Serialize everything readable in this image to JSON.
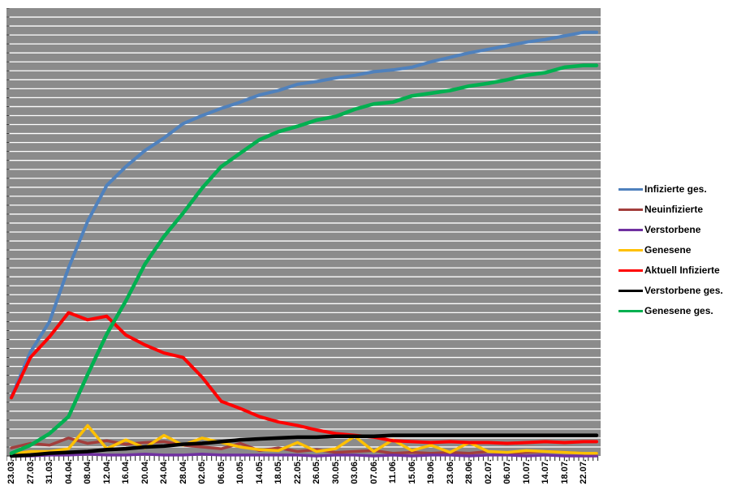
{
  "chart": {
    "plot_background": "#8B8B8B",
    "gridline_color": "#FFFFFF",
    "tick_color": "#404040",
    "legend": [
      {
        "label": "Infizierte ges.",
        "color": "#4F81BD"
      },
      {
        "label": "Neuinfizierte",
        "color": "#A33E3C"
      },
      {
        "label": "Verstorbene",
        "color": "#7030A0"
      },
      {
        "label": "Genesene",
        "color": "#FFC000"
      },
      {
        "label": "Aktuell Infizierte",
        "color": "#FF0000"
      },
      {
        "label": "Verstorbene ges.",
        "color": "#000000"
      },
      {
        "label": "Genesene ges.",
        "color": "#00B050"
      }
    ]
  },
  "chart_data": {
    "type": "line",
    "title": "",
    "xlabel": "",
    "ylabel": "",
    "grid": true,
    "legend_position": "right",
    "x_axis_note": "daily data, tick marks every day, labels every 4 days",
    "y_axis_note": "no numeric y-axis labels visible; values estimated in gridline units, 1 unit = 1 horizontal gridline, 50 gridlines total",
    "ylim": [
      0,
      50
    ],
    "categories": [
      "23.03.",
      "27.03.",
      "31.03.",
      "04.04.",
      "08.04.",
      "12.04.",
      "16.04.",
      "20.04.",
      "24.04.",
      "28.04.",
      "02.05.",
      "06.05.",
      "10.05.",
      "14.05.",
      "18.05.",
      "22.05.",
      "26.05.",
      "30.05.",
      "03.06.",
      "07.06.",
      "11.06.",
      "15.06.",
      "19.06.",
      "23.06.",
      "28.06.",
      "02.07.",
      "06.07.",
      "10.07.",
      "14.07.",
      "18.07.",
      "22.07."
    ],
    "series": [
      {
        "name": "Infizierte ges.",
        "color": "#4F81BD",
        "values": [
          6.6,
          11.6,
          15.0,
          21.0,
          26.2,
          30.2,
          32.3,
          34.1,
          35.5,
          37.1,
          38.0,
          38.8,
          39.5,
          40.3,
          40.8,
          41.5,
          41.8,
          42.2,
          42.5,
          42.9,
          43.1,
          43.4,
          44.0,
          44.5,
          45.0,
          45.4,
          45.8,
          46.2,
          46.5,
          46.9,
          47.3
        ]
      },
      {
        "name": "Neuinfizierte",
        "color": "#A33E3C",
        "values": [
          0.9,
          1.4,
          1.2,
          2.0,
          1.4,
          1.7,
          1.3,
          1.5,
          1.6,
          1.2,
          1.0,
          0.8,
          1.4,
          0.6,
          0.9,
          0.5,
          0.7,
          0.4,
          0.5,
          0.6,
          0.3,
          0.4,
          0.3,
          0.4,
          0.3,
          0.5,
          0.3,
          0.4,
          0.5,
          0.4,
          0.3
        ]
      },
      {
        "name": "Verstorbene",
        "color": "#7030A0",
        "values": [
          0.0,
          0.0,
          0.1,
          0.1,
          0.2,
          0.1,
          0.1,
          0.2,
          0.1,
          0.1,
          0.2,
          0.1,
          0.1,
          0.1,
          0.1,
          0.1,
          0.0,
          0.1,
          0.1,
          0.0,
          0.1,
          0.0,
          0.1,
          0.1,
          0.0,
          0.1,
          0.1,
          0.0,
          0.1,
          0.0,
          0.0
        ]
      },
      {
        "name": "Genesene",
        "color": "#FFC000",
        "values": [
          0.2,
          0.5,
          0.5,
          0.8,
          3.4,
          0.8,
          1.8,
          0.9,
          2.3,
          1.2,
          2.0,
          1.5,
          1.0,
          0.7,
          0.6,
          1.5,
          0.5,
          0.8,
          2.2,
          0.5,
          1.8,
          0.6,
          1.2,
          0.4,
          1.5,
          0.5,
          0.4,
          0.6,
          0.5,
          0.4,
          0.3
        ]
      },
      {
        "name": "Aktuell Infizierte",
        "color": "#FF0000",
        "values": [
          6.5,
          11.0,
          13.3,
          16.0,
          15.2,
          15.6,
          13.5,
          12.4,
          11.5,
          11.0,
          8.8,
          6.1,
          5.3,
          4.4,
          3.8,
          3.4,
          2.9,
          2.5,
          2.3,
          2.1,
          1.7,
          1.6,
          1.5,
          1.6,
          1.5,
          1.5,
          1.4,
          1.5,
          1.6,
          1.5,
          1.6
        ]
      },
      {
        "name": "Verstorbene ges.",
        "color": "#000000",
        "values": [
          0.0,
          0.1,
          0.3,
          0.4,
          0.5,
          0.7,
          0.8,
          1.0,
          1.1,
          1.3,
          1.4,
          1.6,
          1.8,
          1.9,
          2.0,
          2.1,
          2.1,
          2.2,
          2.2,
          2.2,
          2.3,
          2.3,
          2.3,
          2.3,
          2.3,
          2.3,
          2.3,
          2.3,
          2.3,
          2.3,
          2.3
        ]
      },
      {
        "name": "Genesene ges.",
        "color": "#00B050",
        "values": [
          0.3,
          1.2,
          2.5,
          4.4,
          9.1,
          13.6,
          17.3,
          21.4,
          24.5,
          27.1,
          29.9,
          32.3,
          33.8,
          35.3,
          36.2,
          36.8,
          37.5,
          37.9,
          38.7,
          39.3,
          39.5,
          40.2,
          40.5,
          40.8,
          41.3,
          41.6,
          42.0,
          42.5,
          42.8,
          43.4,
          43.6
        ]
      }
    ]
  }
}
